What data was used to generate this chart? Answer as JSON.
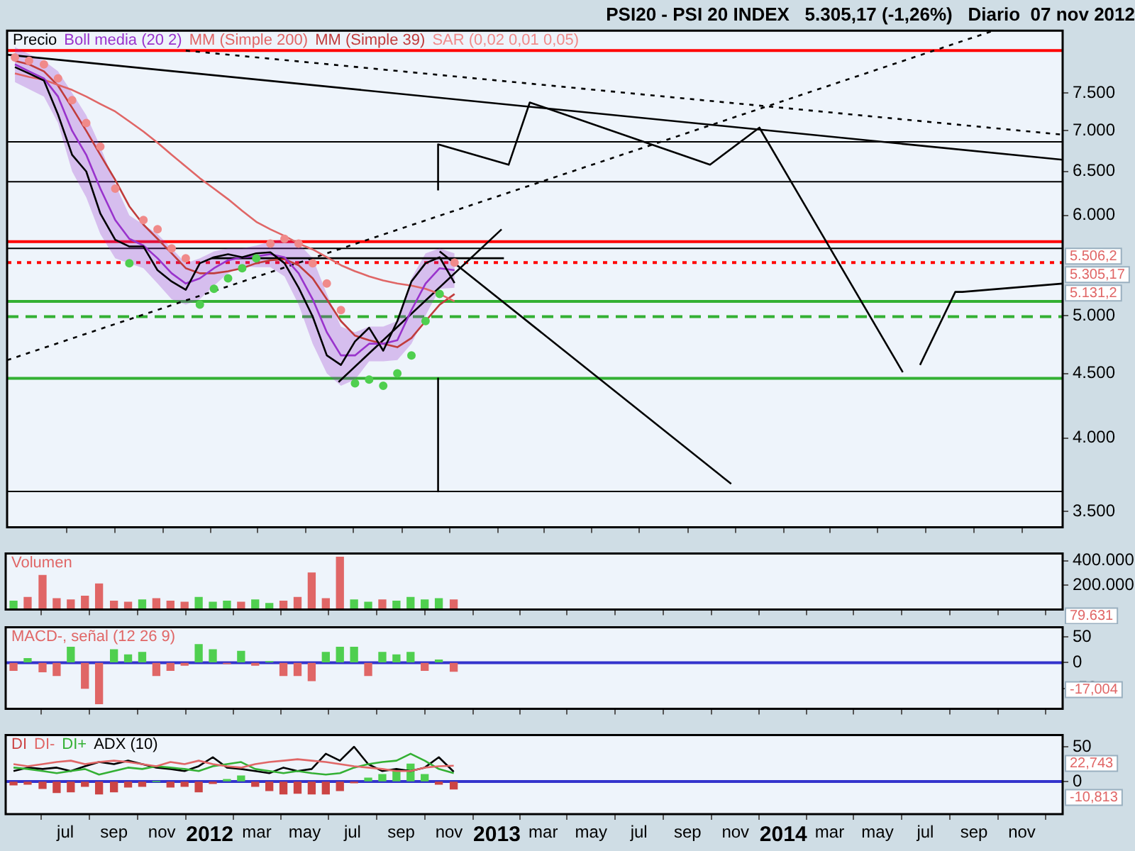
{
  "chart_data": [
    {
      "type": "line",
      "title": "PSI20 - PSI 20 INDEX   5.305,17 (-1,26%)   Diario  07 nov 2012",
      "log": "y",
      "legend": "top left",
      "tick_labels": "y",
      "x": [
        "2011-04-26",
        "2011-05-14",
        "2011-06-02",
        "2011-06-20",
        "2011-07-08",
        "2011-07-26",
        "2011-08-13",
        "2011-09-01",
        "2011-09-19",
        "2011-10-07",
        "2011-10-25",
        "2011-11-12",
        "2011-11-30",
        "2011-12-18",
        "2012-01-05",
        "2012-01-23",
        "2012-02-10",
        "2012-02-28",
        "2012-03-17",
        "2012-04-04",
        "2012-04-22",
        "2012-05-10",
        "2012-05-28",
        "2012-06-15",
        "2012-07-03",
        "2012-07-21",
        "2012-08-08",
        "2012-08-26",
        "2012-09-13",
        "2012-10-01",
        "2012-10-19",
        "2012-11-07"
      ],
      "xlim": [
        "2011-04-16",
        "2014-12-23"
      ],
      "xticks": [
        {
          "value": "2011-07-01",
          "label": null
        },
        {
          "value": "2011-09-01",
          "label": null
        },
        {
          "value": "2011-11-01",
          "label": null
        },
        {
          "value": "2012-01-01",
          "label": null
        },
        {
          "value": "2012-03-01",
          "label": null
        },
        {
          "value": "2012-05-01",
          "label": null
        },
        {
          "value": "2012-07-01",
          "label": null
        },
        {
          "value": "2012-09-01",
          "label": null
        },
        {
          "value": "2012-11-01",
          "label": null
        },
        {
          "value": "2013-01-01",
          "label": null
        },
        {
          "value": "2013-03-01",
          "label": null
        },
        {
          "value": "2013-05-01",
          "label": null
        },
        {
          "value": "2013-07-01",
          "label": null
        },
        {
          "value": "2013-09-01",
          "label": null
        },
        {
          "value": "2013-11-01",
          "label": null
        },
        {
          "value": "2014-01-01",
          "label": null
        },
        {
          "value": "2014-03-01",
          "label": null
        },
        {
          "value": "2014-05-01",
          "label": null
        },
        {
          "value": "2014-07-01",
          "label": null
        },
        {
          "value": "2014-09-01",
          "label": null
        },
        {
          "value": "2014-11-01",
          "label": null
        }
      ],
      "ylim": [
        3400,
        8400
      ],
      "yticks": [
        {
          "value": 3500,
          "label": "3.500"
        },
        {
          "value": 4000,
          "label": "4.000"
        },
        {
          "value": 4500,
          "label": "4.500"
        },
        {
          "value": 5000,
          "label": "5.000"
        },
        {
          "value": 6000,
          "label": "6.000"
        },
        {
          "value": 6500,
          "label": "6.500"
        },
        {
          "value": 7000,
          "label": "7.000"
        },
        {
          "value": 7500,
          "label": "7.500"
        }
      ],
      "series": [
        {
          "name": "Precio",
          "color": "#000000",
          "values": [
            7860,
            7770,
            7670,
            7210,
            6700,
            6500,
            6020,
            5740,
            5670,
            5670,
            5430,
            5320,
            5240,
            5500,
            5560,
            5590,
            5560,
            5600,
            5610,
            5500,
            5260,
            4990,
            4650,
            4570,
            4770,
            4890,
            4690,
            4950,
            5320,
            5500,
            5560,
            5305.17
          ]
        },
        {
          "name": "Boll media (20 2)",
          "color": "#9933cc",
          "values": [
            7900,
            7800,
            7700,
            7450,
            7000,
            6700,
            6300,
            5950,
            5750,
            5680,
            5550,
            5400,
            5300,
            5350,
            5450,
            5530,
            5560,
            5570,
            5590,
            5560,
            5400,
            5150,
            4850,
            4650,
            4650,
            4750,
            4750,
            4780,
            5050,
            5300,
            5450,
            5430
          ],
          "lower": [
            7650,
            7550,
            7450,
            7100,
            6500,
            6200,
            5800,
            5550,
            5500,
            5450,
            5300,
            5150,
            5100,
            5150,
            5280,
            5400,
            5470,
            5460,
            5460,
            5370,
            5100,
            4750,
            4500,
            4400,
            4450,
            4600,
            4600,
            4610,
            4750,
            5000,
            5250,
            5260
          ],
          "upper": [
            8150,
            8050,
            7950,
            7800,
            7500,
            7200,
            6800,
            6350,
            6000,
            5900,
            5800,
            5650,
            5500,
            5550,
            5620,
            5650,
            5650,
            5680,
            5720,
            5750,
            5700,
            5550,
            5200,
            4900,
            4850,
            4900,
            4900,
            4950,
            5350,
            5600,
            5650,
            5600
          ]
        },
        {
          "name": "MM (Simple 200)",
          "color": "#e06666",
          "values": [
            7770,
            7720,
            7680,
            7610,
            7540,
            7450,
            7350,
            7250,
            7120,
            6990,
            6850,
            6700,
            6560,
            6420,
            6300,
            6180,
            6050,
            5930,
            5850,
            5780,
            5700,
            5640,
            5560,
            5480,
            5420,
            5370,
            5330,
            5300,
            5280,
            5250,
            5200,
            5131.2
          ]
        },
        {
          "name": "MM (Simple 39)",
          "color": "#c03c3c",
          "values": [
            7950,
            7900,
            7800,
            7600,
            7300,
            7000,
            6700,
            6400,
            6100,
            5900,
            5750,
            5600,
            5450,
            5400,
            5400,
            5420,
            5450,
            5500,
            5530,
            5540,
            5480,
            5350,
            5150,
            4950,
            4820,
            4780,
            4750,
            4720,
            4800,
            4950,
            5100,
            5200
          ]
        },
        {
          "name": "SAR (0,02 0,01 0,05)",
          "type": "scatter",
          "color": "#f08a8a",
          "colors": [
            "#f08a8a",
            "#f08a8a",
            "#f08a8a",
            "#f08a8a",
            "#f08a8a",
            "#f08a8a",
            "#f08a8a",
            "#f08a8a",
            "#4fcf4f",
            "#f08a8a",
            "#f08a8a",
            "#f08a8a",
            "#f08a8a",
            "#4fcf4f",
            "#4fcf4f",
            "#4fcf4f",
            "#4fcf4f",
            "#4fcf4f",
            "#f08a8a",
            "#f08a8a",
            "#f08a8a",
            "#f08a8a",
            "#f08a8a",
            "#f08a8a",
            "#4fcf4f",
            "#4fcf4f",
            "#4fcf4f",
            "#4fcf4f",
            "#4fcf4f",
            "#4fcf4f",
            "#4fcf4f",
            "#f08a8a"
          ],
          "values": [
            8000,
            7950,
            7900,
            7700,
            7400,
            7100,
            6800,
            6300,
            5500,
            5950,
            5850,
            5650,
            5550,
            5100,
            5250,
            5350,
            5450,
            5550,
            5700,
            5750,
            5700,
            5500,
            5300,
            5050,
            4420,
            4450,
            4400,
            4500,
            4650,
            4950,
            5200,
            5506.2
          ]
        },
        {
          "type": "line",
          "color": "#000000",
          "line_style": "dotted",
          "x": [
            "2011-04-16",
            "2014-09-26"
          ],
          "values": [
            4610,
            8400
          ]
        },
        {
          "type": "line",
          "color": "#000000",
          "line_style": "dotted",
          "x": [
            "2011-11-30",
            "2014-12-23"
          ],
          "values": [
            8100,
            6950
          ]
        },
        {
          "type": "line",
          "color": "#000000",
          "x": [
            "2011-04-16",
            "2014-12-23"
          ],
          "values": [
            8040,
            6640
          ]
        },
        {
          "type": "line",
          "color": "#000000",
          "x": [
            "2012-10-17",
            "2012-10-17",
            "2013-01-15",
            "2013-02-11",
            "2013-09-29",
            "2013-12-01",
            "2014-06-02"
          ],
          "values": [
            6280,
            6830,
            6580,
            7370,
            6580,
            7040,
            4510
          ]
        },
        {
          "type": "line",
          "color": "#000000",
          "x": [
            "2014-06-24",
            "2014-08-08",
            "2014-08-17",
            "2014-12-23"
          ],
          "values": [
            4570,
            5220,
            5220,
            5300
          ]
        },
        {
          "type": "line",
          "color": "#000000",
          "x": [
            "2012-06-12",
            "2013-01-06"
          ],
          "values": [
            4430,
            5850
          ]
        },
        {
          "type": "line",
          "color": "#000000",
          "x": [
            "2012-10-19",
            "2013-10-26"
          ],
          "values": [
            5620,
            3680
          ]
        },
        {
          "type": "line",
          "color": "#000000",
          "x": [
            "2012-10-17",
            "2012-10-17"
          ],
          "values": [
            4460,
            3630
          ]
        },
        {
          "type": "line",
          "color": "#000000",
          "x": [
            "2012-01-02",
            "2013-01-09"
          ],
          "values": [
            5550,
            5550
          ]
        }
      ],
      "ref_lines": [
        {
          "axis": "y",
          "value": 8100,
          "color": "#ff0000"
        },
        {
          "axis": "y",
          "value": 6860,
          "color": "#000000"
        },
        {
          "axis": "y",
          "value": 6380,
          "color": "#000000"
        },
        {
          "axis": "y",
          "value": 5720,
          "color": "#ff0000"
        },
        {
          "axis": "y",
          "value": 5650,
          "color": "#000000"
        },
        {
          "axis": "y",
          "value": 5506.2,
          "color": "#ff0000",
          "line_style": "dotted"
        },
        {
          "axis": "y",
          "value": 5130,
          "color": "#33b033"
        },
        {
          "axis": "y",
          "value": 4990,
          "color": "#33b033",
          "line_style": "dashed"
        },
        {
          "axis": "y",
          "value": 4460,
          "color": "#33b033"
        },
        {
          "axis": "y",
          "value": 3630,
          "color": "#000000"
        }
      ],
      "annotations": [
        "5.506,2",
        "5.305,17",
        "5.131,2"
      ]
    },
    {
      "type": "bar",
      "legend": "top left",
      "tick_labels": "y",
      "x": [
        "2011-04-26",
        "2011-05-14",
        "2011-06-02",
        "2011-06-20",
        "2011-07-08",
        "2011-07-26",
        "2011-08-13",
        "2011-09-01",
        "2011-09-19",
        "2011-10-07",
        "2011-10-25",
        "2011-11-12",
        "2011-11-30",
        "2011-12-18",
        "2012-01-05",
        "2012-01-23",
        "2012-02-10",
        "2012-02-28",
        "2012-03-17",
        "2012-04-04",
        "2012-04-22",
        "2012-05-10",
        "2012-05-28",
        "2012-06-15",
        "2012-07-03",
        "2012-07-21",
        "2012-08-08",
        "2012-08-26",
        "2012-09-13",
        "2012-10-01",
        "2012-10-19",
        "2012-11-07"
      ],
      "xlim": [
        "2011-04-16",
        "2014-12-23"
      ],
      "xticks": [
        {
          "value": "2011-07-01",
          "label": null
        },
        {
          "value": "2011-09-01",
          "label": null
        },
        {
          "value": "2011-11-01",
          "label": null
        },
        {
          "value": "2012-01-01",
          "label": null
        },
        {
          "value": "2012-03-01",
          "label": null
        },
        {
          "value": "2012-05-01",
          "label": null
        },
        {
          "value": "2012-07-01",
          "label": null
        },
        {
          "value": "2012-09-01",
          "label": null
        },
        {
          "value": "2012-11-01",
          "label": null
        },
        {
          "value": "2013-01-01",
          "label": null
        },
        {
          "value": "2013-03-01",
          "label": null
        },
        {
          "value": "2013-05-01",
          "label": null
        },
        {
          "value": "2013-07-01",
          "label": null
        },
        {
          "value": "2013-09-01",
          "label": null
        },
        {
          "value": "2013-11-01",
          "label": null
        },
        {
          "value": "2014-01-01",
          "label": null
        },
        {
          "value": "2014-03-01",
          "label": null
        },
        {
          "value": "2014-05-01",
          "label": null
        },
        {
          "value": "2014-07-01",
          "label": null
        },
        {
          "value": "2014-09-01",
          "label": null
        },
        {
          "value": "2014-11-01",
          "label": null
        }
      ],
      "ylim": [
        0,
        460000
      ],
      "yticks": [
        {
          "value": 200000,
          "label": "200.000"
        },
        {
          "value": 400000,
          "label": "400.000"
        }
      ],
      "series": [
        {
          "name": "Volumen",
          "color": "#e06666",
          "colors": [
            "#4fcf4f",
            "#e06666",
            "#e06666",
            "#e06666",
            "#e06666",
            "#e06666",
            "#e06666",
            "#e06666",
            "#e06666",
            "#4fcf4f",
            "#e06666",
            "#e06666",
            "#e06666",
            "#4fcf4f",
            "#4fcf4f",
            "#4fcf4f",
            "#e06666",
            "#4fcf4f",
            "#4fcf4f",
            "#e06666",
            "#e06666",
            "#e06666",
            "#e06666",
            "#e06666",
            "#4fcf4f",
            "#4fcf4f",
            "#e06666",
            "#4fcf4f",
            "#4fcf4f",
            "#4fcf4f",
            "#4fcf4f",
            "#e06666"
          ],
          "values": [
            70000,
            100000,
            280000,
            90000,
            80000,
            110000,
            210000,
            70000,
            60000,
            80000,
            90000,
            70000,
            60000,
            100000,
            60000,
            70000,
            60000,
            80000,
            50000,
            70000,
            100000,
            300000,
            90000,
            430000,
            80000,
            60000,
            80000,
            70000,
            100000,
            80000,
            90000,
            79631
          ]
        }
      ],
      "annotations": [
        "79.631"
      ]
    },
    {
      "type": "bar",
      "legend": "top left",
      "tick_labels": "y",
      "x": [
        "2011-04-26",
        "2011-05-14",
        "2011-06-02",
        "2011-06-20",
        "2011-07-08",
        "2011-07-26",
        "2011-08-13",
        "2011-09-01",
        "2011-09-19",
        "2011-10-07",
        "2011-10-25",
        "2011-11-12",
        "2011-11-30",
        "2011-12-18",
        "2012-01-05",
        "2012-01-23",
        "2012-02-10",
        "2012-02-28",
        "2012-03-17",
        "2012-04-04",
        "2012-04-22",
        "2012-05-10",
        "2012-05-28",
        "2012-06-15",
        "2012-07-03",
        "2012-07-21",
        "2012-08-08",
        "2012-08-26",
        "2012-09-13",
        "2012-10-01",
        "2012-10-19",
        "2012-11-07"
      ],
      "xlim": [
        "2011-04-16",
        "2014-12-23"
      ],
      "xticks": [
        {
          "value": "2011-07-01",
          "label": null
        },
        {
          "value": "2011-09-01",
          "label": null
        },
        {
          "value": "2011-11-01",
          "label": null
        },
        {
          "value": "2012-01-01",
          "label": null
        },
        {
          "value": "2012-03-01",
          "label": null
        },
        {
          "value": "2012-05-01",
          "label": null
        },
        {
          "value": "2012-07-01",
          "label": null
        },
        {
          "value": "2012-09-01",
          "label": null
        },
        {
          "value": "2012-11-01",
          "label": null
        },
        {
          "value": "2013-01-01",
          "label": null
        },
        {
          "value": "2013-03-01",
          "label": null
        },
        {
          "value": "2013-05-01",
          "label": null
        },
        {
          "value": "2013-07-01",
          "label": null
        },
        {
          "value": "2013-09-01",
          "label": null
        },
        {
          "value": "2013-11-01",
          "label": null
        },
        {
          "value": "2014-01-01",
          "label": null
        },
        {
          "value": "2014-03-01",
          "label": null
        },
        {
          "value": "2014-05-01",
          "label": null
        },
        {
          "value": "2014-07-01",
          "label": null
        },
        {
          "value": "2014-09-01",
          "label": null
        },
        {
          "value": "2014-11-01",
          "label": null
        }
      ],
      "ylim": [
        -90,
        69
      ],
      "yticks": [
        -50,
        0,
        50
      ],
      "series": [
        {
          "name": "MACD-, señal (12 26 9)",
          "color": "#e06666",
          "colors": [
            "#e06666",
            "#4fcf4f",
            "#e06666",
            "#e06666",
            "#4fcf4f",
            "#e06666",
            "#e06666",
            "#4fcf4f",
            "#4fcf4f",
            "#4fcf4f",
            "#e06666",
            "#e06666",
            "#e06666",
            "#4fcf4f",
            "#4fcf4f",
            "#e06666",
            "#4fcf4f",
            "#e06666",
            "#4fcf4f",
            "#e06666",
            "#e06666",
            "#e06666",
            "#4fcf4f",
            "#4fcf4f",
            "#4fcf4f",
            "#e06666",
            "#4fcf4f",
            "#4fcf4f",
            "#4fcf4f",
            "#e06666",
            "#4fcf4f",
            "#e06666"
          ],
          "values": [
            -15,
            8,
            -18,
            -25,
            30,
            -50,
            -80,
            25,
            15,
            20,
            -25,
            -15,
            -5,
            35,
            25,
            -2,
            22,
            -5,
            2,
            -25,
            -25,
            -35,
            20,
            30,
            30,
            -25,
            20,
            15,
            20,
            -15,
            5,
            -17.004
          ]
        }
      ],
      "ref_lines": [
        {
          "axis": "y",
          "value": 0,
          "color": "#3333cc"
        }
      ],
      "annotations": [
        "-17,004"
      ]
    },
    {
      "type": "line",
      "legend": "top left",
      "x": [
        "2011-04-26",
        "2011-05-14",
        "2011-06-02",
        "2011-06-20",
        "2011-07-08",
        "2011-07-26",
        "2011-08-13",
        "2011-09-01",
        "2011-09-19",
        "2011-10-07",
        "2011-10-25",
        "2011-11-12",
        "2011-11-30",
        "2011-12-18",
        "2012-01-05",
        "2012-01-23",
        "2012-02-10",
        "2012-02-28",
        "2012-03-17",
        "2012-04-04",
        "2012-04-22",
        "2012-05-10",
        "2012-05-28",
        "2012-06-15",
        "2012-07-03",
        "2012-07-21",
        "2012-08-08",
        "2012-08-26",
        "2012-09-13",
        "2012-10-01",
        "2012-10-19",
        "2012-11-07"
      ],
      "xlim": [
        "2011-04-16",
        "2014-12-23"
      ],
      "xticks": [
        {
          "value": "2011-07-01",
          "label": "jul"
        },
        {
          "value": "2011-09-01",
          "label": "sep"
        },
        {
          "value": "2011-11-01",
          "label": "nov"
        },
        {
          "value": "2012-01-01",
          "label": "2012"
        },
        {
          "value": "2012-03-01",
          "label": "mar"
        },
        {
          "value": "2012-05-01",
          "label": "may"
        },
        {
          "value": "2012-07-01",
          "label": "jul"
        },
        {
          "value": "2012-09-01",
          "label": "sep"
        },
        {
          "value": "2012-11-01",
          "label": "nov"
        },
        {
          "value": "2013-01-01",
          "label": "2013"
        },
        {
          "value": "2013-03-01",
          "label": "mar"
        },
        {
          "value": "2013-05-01",
          "label": "may"
        },
        {
          "value": "2013-07-01",
          "label": "jul"
        },
        {
          "value": "2013-09-01",
          "label": "sep"
        },
        {
          "value": "2013-11-01",
          "label": "nov"
        },
        {
          "value": "2014-01-01",
          "label": "2014"
        },
        {
          "value": "2014-03-01",
          "label": "mar"
        },
        {
          "value": "2014-05-01",
          "label": "may"
        },
        {
          "value": "2014-07-01",
          "label": "jul"
        },
        {
          "value": "2014-09-01",
          "label": "sep"
        },
        {
          "value": "2014-11-01",
          "label": "nov"
        }
      ],
      "ylim": [
        -47,
        67
      ],
      "yticks": [
        0,
        50
      ],
      "series": [
        {
          "name": "DI",
          "type": "bar",
          "color": "#cc4444",
          "colors": [
            "#cc4444",
            "#cc4444",
            "#cc4444",
            "#cc4444",
            "#cc4444",
            "#cc4444",
            "#cc4444",
            "#cc4444",
            "#cc4444",
            "#cc4444",
            "#4fcf4f",
            "#cc4444",
            "#cc4444",
            "#cc4444",
            "#cc4444",
            "#4fcf4f",
            "#4fcf4f",
            "#cc4444",
            "#cc4444",
            "#cc4444",
            "#cc4444",
            "#cc4444",
            "#cc4444",
            "#cc4444",
            "#cc4444",
            "#4fcf4f",
            "#4fcf4f",
            "#4fcf4f",
            "#4fcf4f",
            "#4fcf4f",
            "#cc4444",
            "#cc4444"
          ],
          "values": [
            -5,
            -4,
            -10,
            -16,
            -15,
            -7,
            -18,
            -15,
            -8,
            -7,
            0,
            -8,
            -7,
            -15,
            -3,
            3,
            8,
            -7,
            -13,
            -18,
            -17,
            -18,
            -18,
            -13,
            -2,
            5,
            10,
            15,
            25,
            10,
            -4,
            -10.813
          ]
        },
        {
          "name": "DI-",
          "color": "#e06666",
          "values": [
            25,
            22,
            25,
            28,
            30,
            25,
            28,
            30,
            28,
            25,
            22,
            28,
            25,
            30,
            25,
            22,
            20,
            25,
            28,
            30,
            32,
            30,
            28,
            25,
            22,
            20,
            18,
            15,
            15,
            20,
            22,
            22.743
          ]
        },
        {
          "name": "DI+",
          "color": "#33b033",
          "values": [
            20,
            18,
            15,
            12,
            15,
            18,
            10,
            15,
            20,
            18,
            22,
            20,
            18,
            15,
            22,
            25,
            28,
            18,
            15,
            12,
            15,
            12,
            10,
            12,
            20,
            25,
            28,
            30,
            40,
            30,
            18,
            11.9
          ]
        },
        {
          "name": "ADX (10)",
          "color": "#000000",
          "values": [
            15,
            20,
            18,
            20,
            15,
            22,
            28,
            25,
            30,
            25,
            20,
            18,
            15,
            22,
            35,
            20,
            18,
            15,
            12,
            20,
            15,
            18,
            40,
            30,
            50,
            25,
            15,
            18,
            15,
            20,
            35,
            14
          ]
        }
      ],
      "ref_lines": [
        {
          "axis": "y",
          "value": 0,
          "color": "#3333cc"
        }
      ],
      "annotations": [
        "22,743",
        "-10,813"
      ]
    }
  ]
}
